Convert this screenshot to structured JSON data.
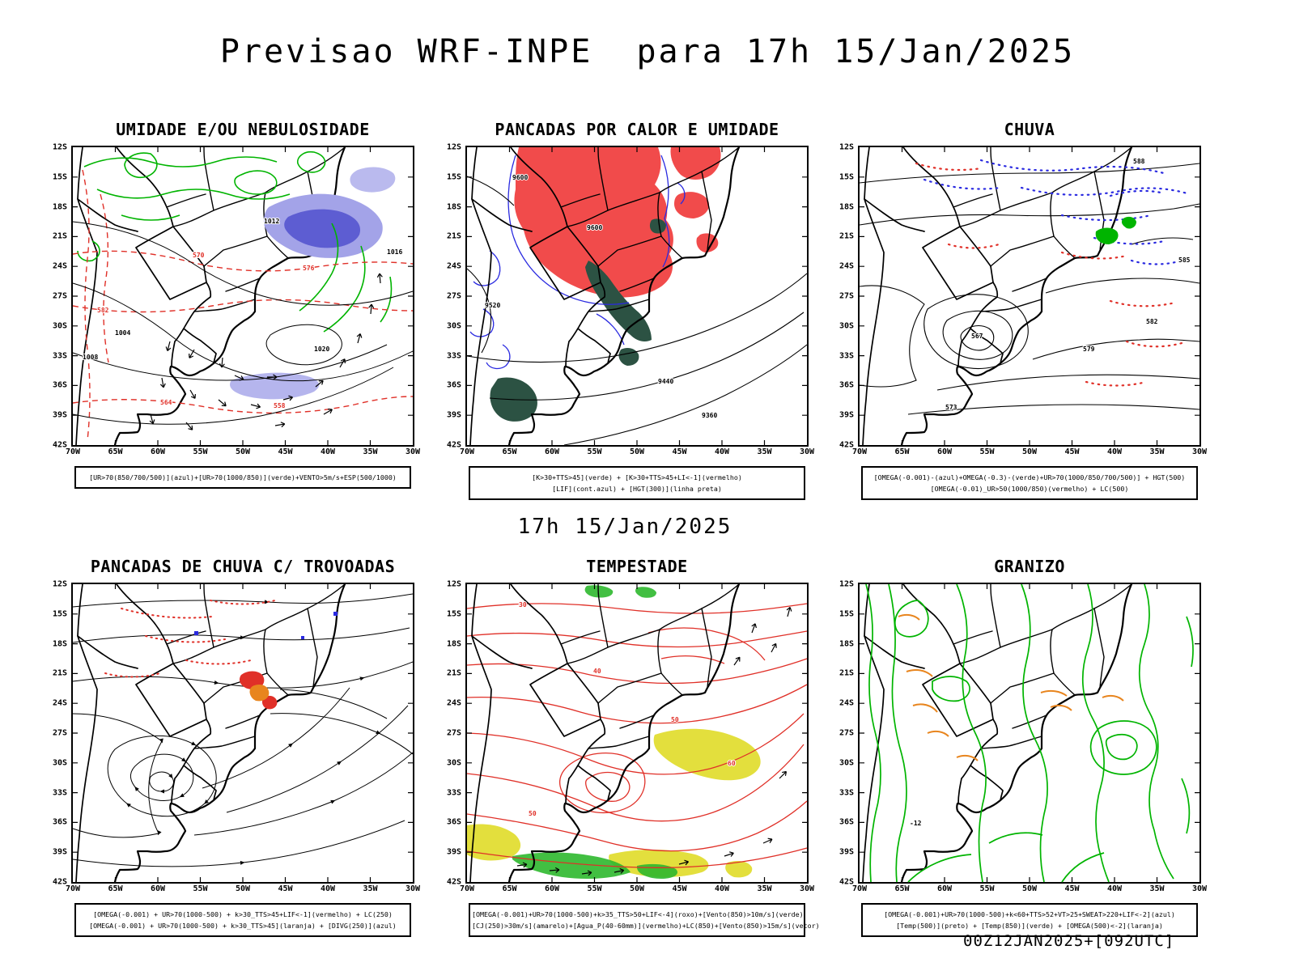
{
  "header": {
    "title": "Previsao WRF-INPE  para 17h 15/Jan/2025",
    "valid_time": "17h 15/Jan/2025"
  },
  "footer": {
    "run_info": "00Z12JAN2025+[092UTC]"
  },
  "axes": {
    "y_ticks": [
      "12S",
      "15S",
      "18S",
      "21S",
      "24S",
      "27S",
      "30S",
      "33S",
      "36S",
      "39S",
      "42S"
    ],
    "x_ticks": [
      "70W",
      "65W",
      "60W",
      "55W",
      "50W",
      "45W",
      "40W",
      "35W",
      "30W"
    ]
  },
  "colors": {
    "green": "#00b400",
    "green_fill": "#2eb82e",
    "red": "#e03028",
    "red_fill": "#f14b4b",
    "blue": "#2a2ae0",
    "purple_light": "#a3a3e8",
    "purple_dark": "#5d5dd2",
    "dark_green": "#2c5243",
    "yellow": "#e3df3d",
    "orange": "#e8851e"
  },
  "panels": [
    {
      "id": "umidade",
      "title": "UMIDADE E/OU NEBULOSIDADE",
      "legend_lines": [
        "[UR>70(850/700/500)](azul)+[UR>70(1000/850)](verde)+VENTO>5m/s+ESP(500/1000)"
      ],
      "contour_labels": [
        "1012",
        "1016",
        "1020",
        "1004",
        "1008",
        "576",
        "570",
        "582",
        "558",
        "564"
      ]
    },
    {
      "id": "pancadas-calor",
      "title": "PANCADAS POR CALOR E UMIDADE",
      "legend_lines": [
        "[K>30+TTS>45](verde) + [K>30+TTS>45+LI<-1](vermelho)",
        "[LIF](cont.azul) + [HGT(300)](linha preta)"
      ],
      "contour_labels": [
        "9600",
        "9600",
        "9520",
        "9440",
        "9360"
      ]
    },
    {
      "id": "chuva",
      "title": "CHUVA",
      "legend_lines": [
        "[OMEGA(-0.001)-(azul)+OMEGA(-0.3)-(verde)+UR>70(1000/850/700/500)] + HGT(500)",
        "[OMEGA(-0.01)_UR>50(1000/850)(vermelho) + LC(500)"
      ],
      "contour_labels": [
        "567",
        "573",
        "579",
        "582",
        "585",
        "588"
      ]
    },
    {
      "id": "pancadas-trovoadas",
      "title": "PANCADAS DE CHUVA C/ TROVOADAS",
      "legend_lines": [
        "[OMEGA(-0.001) + UR>70(1000-500) + k>30_TTS>45+LIF<-1](vermelho) + LC(250)",
        "[OMEGA(-0.001) + UR>70(1000-500) + k>30_TTS>45](laranja) + [DIVG(250)](azul)"
      ],
      "contour_labels": []
    },
    {
      "id": "tempestade",
      "title": "TEMPESTADE",
      "legend_lines": [
        "[OMEGA(-0.001)+UR>70(1000-500)+k>35_TTS>50+LIF<-4](roxo)+[Vento(850)>10m/s](verde)",
        "[CJ(250)>30m/s](amarelo)+[Agua_P(40-60mm)](vermelho)+LC(850)+[Vento(850)>15m/s](vetor)"
      ],
      "contour_labels": [
        "30",
        "40",
        "50",
        "60",
        "50"
      ]
    },
    {
      "id": "granizo",
      "title": "GRANIZO",
      "legend_lines": [
        "[OMEGA(-0.001)+UR>70(1000-500)+k<60+TTS>52+VT>25+SWEAT>220+LIF<-2](azul)",
        "[Temp(500)](preto) + [Temp(850)](verde) + [OMEGA(500)<-2](laranja)"
      ],
      "contour_labels": [
        "-12"
      ]
    }
  ]
}
